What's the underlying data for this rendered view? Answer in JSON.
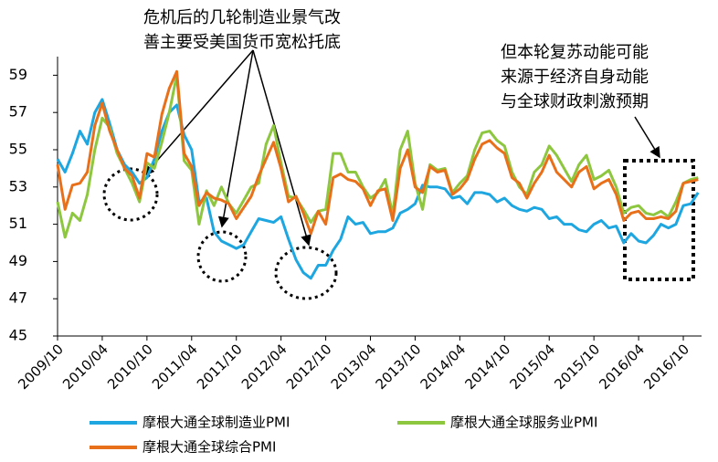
{
  "chart_data": {
    "type": "line",
    "annotations": [
      [
        "危机后的几轮制造业景气改",
        "善主要受美国货币宽松托底"
      ],
      [
        "但本轮复苏动能可能",
        "来源于经济自身动能",
        "与全球财政刺激预期"
      ]
    ],
    "categories": [
      "2009/10",
      null,
      null,
      null,
      null,
      null,
      "2010/04",
      null,
      null,
      null,
      null,
      null,
      "2010/10",
      null,
      null,
      null,
      null,
      null,
      "2011/04",
      null,
      null,
      null,
      null,
      null,
      "2011/10",
      null,
      null,
      null,
      null,
      null,
      "2012/04",
      null,
      null,
      null,
      null,
      null,
      "2012/10",
      null,
      null,
      null,
      null,
      null,
      "2013/04",
      null,
      null,
      null,
      null,
      null,
      "2013/10",
      null,
      null,
      null,
      null,
      null,
      "2014/04",
      null,
      null,
      null,
      null,
      null,
      "2014/10",
      null,
      null,
      null,
      null,
      null,
      "2015/04",
      null,
      null,
      null,
      null,
      null,
      "2015/10",
      null,
      null,
      null,
      null,
      null,
      "2016/04",
      null,
      null,
      null,
      null,
      null,
      "2016/10",
      null,
      null
    ],
    "series": [
      {
        "name": "摩根大通全球制造业PMI",
        "color": "#1ea6e0",
        "values": [
          54.5,
          53.8,
          54.8,
          56.0,
          55.3,
          57.0,
          57.7,
          56.4,
          55.0,
          54.2,
          53.8,
          53.2,
          53.5,
          54.5,
          56.0,
          57.0,
          57.4,
          55.8,
          55.0,
          52.2,
          52.4,
          50.6,
          50.1,
          49.9,
          49.7,
          49.9,
          50.6,
          51.3,
          51.2,
          51.1,
          51.4,
          50.2,
          49.1,
          48.4,
          48.1,
          48.8,
          48.8,
          49.6,
          50.2,
          51.4,
          51.0,
          51.1,
          50.5,
          50.6,
          50.6,
          50.8,
          51.6,
          51.8,
          52.1,
          53.1,
          53.0,
          53.0,
          52.9,
          52.4,
          52.5,
          52.1,
          52.7,
          52.7,
          52.6,
          52.2,
          52.4,
          52.0,
          51.8,
          51.7,
          51.9,
          51.8,
          51.3,
          51.4,
          51.0,
          51.0,
          50.7,
          50.6,
          51.0,
          51.2,
          50.8,
          50.9,
          50.0,
          50.5,
          50.1,
          50.0,
          50.4,
          51.0,
          50.8,
          51.0,
          52.0,
          52.1,
          52.7
        ]
      },
      {
        "name": "摩根大通全球服务业PMI",
        "color": "#8dc63f",
        "values": [
          52.2,
          50.3,
          51.6,
          51.2,
          52.6,
          55.0,
          56.7,
          56.2,
          54.8,
          54.0,
          53.2,
          52.2,
          54.3,
          54.0,
          55.4,
          57.0,
          59.0,
          54.4,
          53.9,
          51.0,
          52.8,
          52.0,
          53.0,
          52.1,
          51.6,
          52.3,
          53.0,
          53.2,
          55.3,
          56.3,
          54.3,
          52.5,
          52.4,
          51.8,
          51.1,
          51.7,
          51.8,
          54.8,
          54.8,
          53.8,
          53.8,
          53.0,
          52.4,
          52.7,
          53.4,
          51.5,
          55.0,
          56.0,
          53.2,
          51.8,
          54.2,
          53.9,
          54.0,
          52.7,
          53.2,
          53.6,
          55.0,
          55.9,
          56.0,
          55.5,
          55.2,
          53.8,
          53.0,
          52.6,
          53.8,
          54.2,
          55.2,
          54.7,
          54.0,
          53.3,
          54.2,
          54.7,
          53.4,
          53.6,
          53.9,
          53.0,
          51.6,
          51.9,
          52.0,
          51.6,
          51.5,
          51.7,
          51.4,
          52.2,
          53.2,
          53.4,
          53.5
        ]
      },
      {
        "name": "摩根大通全球综合PMI",
        "color": "#e8701a",
        "values": [
          54.2,
          51.8,
          53.1,
          53.2,
          53.8,
          56.3,
          57.5,
          56.0,
          55.0,
          54.0,
          53.6,
          52.4,
          54.8,
          54.6,
          56.9,
          58.3,
          59.2,
          54.8,
          54.1,
          52.0,
          52.7,
          52.4,
          52.3,
          52.1,
          51.3,
          51.9,
          52.5,
          53.6,
          54.5,
          55.4,
          54.0,
          52.2,
          52.5,
          51.6,
          50.5,
          51.7,
          51.0,
          53.5,
          53.7,
          53.4,
          53.3,
          52.9,
          52.0,
          52.8,
          52.9,
          51.2,
          54.0,
          55.0,
          53.0,
          52.7,
          54.1,
          53.8,
          53.9,
          52.6,
          52.9,
          53.4,
          54.5,
          55.3,
          55.5,
          55.1,
          54.8,
          53.5,
          53.2,
          52.4,
          53.2,
          53.8,
          54.7,
          53.8,
          53.4,
          53.0,
          53.8,
          54.1,
          52.9,
          53.2,
          53.4,
          52.6,
          51.2,
          51.6,
          51.7,
          51.3,
          51.3,
          51.4,
          51.3,
          51.7,
          53.2,
          53.3,
          53.4
        ]
      }
    ],
    "ylim": [
      45,
      60
    ],
    "yticks": [
      45,
      47,
      49,
      51,
      53,
      55,
      57,
      59
    ]
  }
}
